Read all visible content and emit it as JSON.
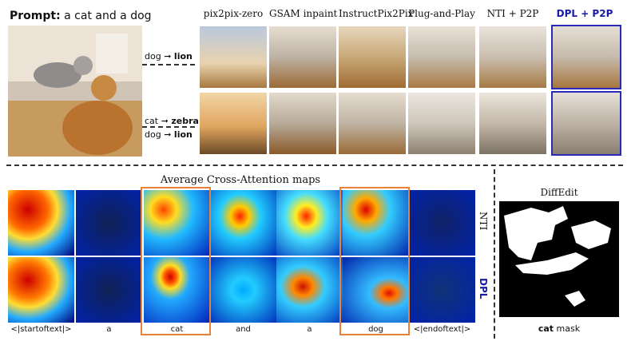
{
  "prompt": {
    "label": "Prompt:",
    "text": " a cat and a dog"
  },
  "edits": [
    {
      "from": "dog",
      "to": "lion"
    },
    {
      "from": "cat",
      "to": "zebra"
    },
    {
      "from": "dog",
      "to": "lion"
    }
  ],
  "methods": [
    "pix2pix-zero",
    "GSAM inpaint",
    "InstructPix2Pix",
    "Plug-and-Play",
    "NTI + P2P",
    "DPL + P2P"
  ],
  "attention": {
    "title": "Average Cross-Attention maps",
    "rows": [
      "NTI",
      "DPL"
    ],
    "tokens": [
      "<|startoftext|>",
      "a",
      "cat",
      "and",
      "a",
      "dog",
      "<|endoftext|>"
    ]
  },
  "diffedit": {
    "title": "DiffEdit",
    "mask_word": "cat",
    "mask_suffix": " mask"
  },
  "colors": {
    "highlight": "#e8823a",
    "method_accent": "#1a1aa8"
  }
}
